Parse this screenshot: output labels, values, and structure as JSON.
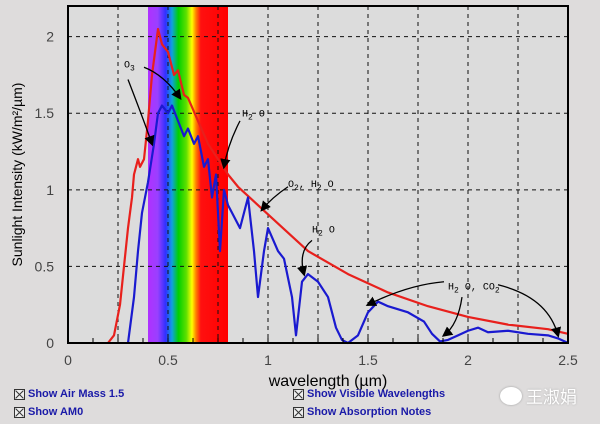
{
  "chart_data": {
    "type": "line",
    "title": "",
    "xlabel": "wavelength (µm)",
    "ylabel": "Sunlight Intensity (kW/m²/µm)",
    "xlim": [
      0,
      2.5
    ],
    "ylim": [
      0,
      2.2
    ],
    "xticks": [
      "0",
      "0.5",
      "1",
      "1.5",
      "2",
      "2.5"
    ],
    "xtick_values": [
      0,
      0.5,
      1,
      1.5,
      2,
      2.5
    ],
    "yticks": [
      "0",
      "0.5",
      "1",
      "1.5",
      "2"
    ],
    "ytick_values": [
      0,
      0.5,
      1,
      1.5,
      2
    ],
    "grid": true,
    "visible_band": [
      0.4,
      0.8
    ],
    "series": [
      {
        "name": "AM0",
        "color": "#e8201c",
        "x": [
          0.2,
          0.23,
          0.26,
          0.28,
          0.3,
          0.32,
          0.33,
          0.35,
          0.36,
          0.38,
          0.4,
          0.42,
          0.44,
          0.45,
          0.47,
          0.5,
          0.53,
          0.55,
          0.58,
          0.6,
          0.65,
          0.7,
          0.75,
          0.8,
          0.85,
          0.95,
          1.05,
          1.2,
          1.4,
          1.6,
          1.8,
          2.0,
          2.2,
          2.4,
          2.5
        ],
        "y": [
          0.0,
          0.05,
          0.25,
          0.5,
          0.75,
          0.95,
          1.1,
          1.2,
          1.15,
          1.2,
          1.45,
          1.75,
          1.95,
          2.05,
          1.95,
          1.9,
          1.75,
          1.78,
          1.62,
          1.6,
          1.45,
          1.3,
          1.2,
          1.1,
          1.02,
          0.9,
          0.78,
          0.6,
          0.45,
          0.33,
          0.24,
          0.17,
          0.12,
          0.09,
          0.06
        ]
      },
      {
        "name": "Air Mass 1.5",
        "color": "#1a1ad0",
        "x": [
          0.3,
          0.33,
          0.35,
          0.37,
          0.4,
          0.43,
          0.45,
          0.47,
          0.5,
          0.52,
          0.55,
          0.58,
          0.6,
          0.63,
          0.65,
          0.68,
          0.7,
          0.72,
          0.74,
          0.76,
          0.78,
          0.8,
          0.82,
          0.86,
          0.9,
          0.93,
          0.95,
          0.98,
          1.0,
          1.05,
          1.08,
          1.12,
          1.14,
          1.17,
          1.2,
          1.25,
          1.3,
          1.34,
          1.37,
          1.4,
          1.45,
          1.5,
          1.55,
          1.6,
          1.7,
          1.78,
          1.82,
          1.86,
          1.9,
          1.95,
          2.0,
          2.05,
          2.1,
          2.2,
          2.3,
          2.4,
          2.45,
          2.5
        ],
        "y": [
          0.0,
          0.3,
          0.6,
          0.85,
          1.05,
          1.3,
          1.5,
          1.55,
          1.5,
          1.55,
          1.45,
          1.35,
          1.4,
          1.3,
          1.35,
          1.15,
          1.2,
          0.95,
          1.1,
          0.6,
          1.0,
          0.9,
          0.85,
          0.75,
          0.95,
          0.6,
          0.3,
          0.6,
          0.75,
          0.6,
          0.55,
          0.3,
          0.05,
          0.4,
          0.45,
          0.4,
          0.3,
          0.1,
          0.02,
          0.0,
          0.05,
          0.2,
          0.27,
          0.24,
          0.2,
          0.14,
          0.06,
          0.01,
          0.02,
          0.05,
          0.08,
          0.1,
          0.07,
          0.08,
          0.06,
          0.05,
          0.03,
          0.0
        ]
      }
    ],
    "annotations": [
      {
        "text": "O",
        "sub": "3",
        "x": 0.28,
        "y": 1.8
      },
      {
        "text": "H",
        "sub": "2",
        "rest": " O",
        "x": 0.87,
        "y": 1.48
      },
      {
        "text": "O",
        "sub": "2",
        "rest": ", H",
        "sub2": "2",
        "rest2": " O",
        "x": 1.1,
        "y": 1.02
      },
      {
        "text": "H",
        "sub": "2",
        "rest": " O",
        "x": 1.22,
        "y": 0.72
      },
      {
        "text": "H",
        "sub": "2",
        "rest": " O, CO",
        "sub2": "2",
        "rest2": "",
        "x": 1.9,
        "y": 0.35
      }
    ]
  },
  "options": [
    {
      "label": "Show Air Mass 1.5",
      "checked": true
    },
    {
      "label": "Show AM0",
      "checked": true
    },
    {
      "label": "Show Visible Wavelengths",
      "checked": true
    },
    {
      "label": "Show Absorption Notes",
      "checked": true
    }
  ],
  "watermark": "王淑娟"
}
